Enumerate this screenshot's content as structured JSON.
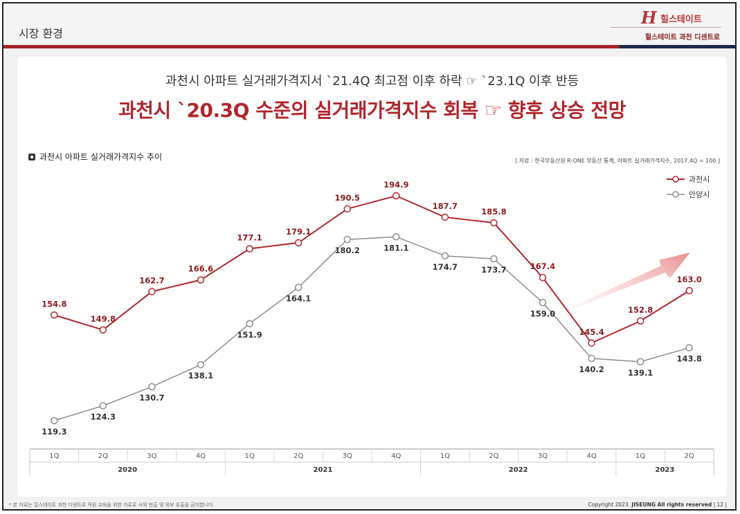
{
  "header": {
    "section_title": "시장 환경",
    "logo_mark": "H",
    "logo_text": "힐스테이트",
    "complex_name": "힐스테이트 과천 디센트로"
  },
  "subhead": "과천시 아파트 실거래가격지서 `21.4Q 최고점 이후 하락 ☞ `23.1Q 이후 반등",
  "headline": "과천시 `20.3Q 수준의 실거래가격지수 회복 ☞ 향후 상승 전망",
  "chart_title": "과천시 아파트 실거래가격지수 추이",
  "source": "[ 자료 : 한국부동산원 R-ONE 부동산 통계, 아파트 실거래가격지수, 2017.4Q = 100 ]",
  "colors": {
    "gwacheon": "#b0262b",
    "anyang": "#8c8c8c",
    "accent": "#a32127"
  },
  "chart_data": {
    "type": "line",
    "categories": [
      "1Q",
      "2Q",
      "3Q",
      "4Q",
      "1Q",
      "2Q",
      "3Q",
      "4Q",
      "1Q",
      "2Q",
      "3Q",
      "4Q",
      "1Q",
      "2Q"
    ],
    "years": [
      {
        "label": "2020",
        "span": 4
      },
      {
        "label": "2021",
        "span": 4
      },
      {
        "label": "2022",
        "span": 4
      },
      {
        "label": "2023",
        "span": 2
      }
    ],
    "series": [
      {
        "name": "과천시",
        "values": [
          154.8,
          149.8,
          162.7,
          166.6,
          177.1,
          179.1,
          190.5,
          194.9,
          187.7,
          185.8,
          167.4,
          145.4,
          152.8,
          163.0
        ]
      },
      {
        "name": "안양시",
        "values": [
          119.3,
          124.3,
          130.7,
          138.1,
          151.9,
          164.1,
          180.2,
          181.1,
          174.7,
          173.7,
          159.0,
          140.2,
          139.1,
          143.8
        ]
      }
    ],
    "legend": "top-right",
    "grid": false
  },
  "footer": {
    "note": "* 본 자료는 힐스테이트 과천 디센트로 직원 교육을 위한 자료로 사외 반출 및 외부 유출을 금지합니다.",
    "copyright_prefix": "Copyright 2023.",
    "copyright_brand": "JISEUNG All rights reserved",
    "page": "| 12 |"
  }
}
